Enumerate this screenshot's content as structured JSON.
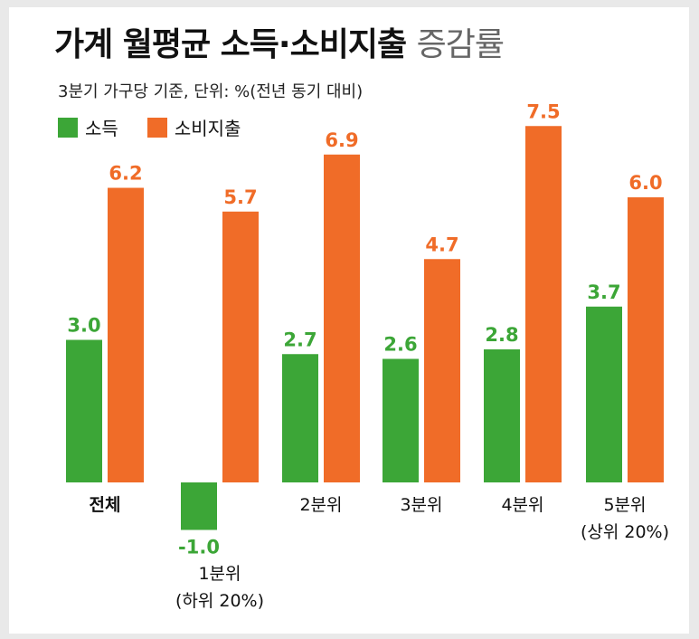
{
  "title_main": "가계 월평균 소득·소비지출",
  "title_light": "증감률",
  "subtitle": "3분기 가구당 기준, 단위: %(전년 동기 대비)",
  "colors": {
    "income": "#3ca637",
    "spending": "#f06c28"
  },
  "chart_data": {
    "type": "bar",
    "categories": [
      [
        "전체"
      ],
      [
        "1분위",
        "(하위 20%)"
      ],
      [
        "2분위"
      ],
      [
        "3분위"
      ],
      [
        "4분위"
      ],
      [
        "5분위",
        "(상위 20%)"
      ]
    ],
    "series": [
      {
        "name": "소득",
        "values": [
          3.0,
          -1.0,
          2.7,
          2.6,
          2.8,
          3.7
        ],
        "labels": [
          "3.0",
          "-1.0",
          "2.7",
          "2.6",
          "2.8",
          "3.7"
        ]
      },
      {
        "name": "소비지출",
        "values": [
          6.2,
          5.7,
          6.9,
          4.7,
          7.5,
          6.0
        ],
        "labels": [
          "6.2",
          "5.7",
          "6.9",
          "4.7",
          "7.5",
          "6.0"
        ]
      }
    ],
    "title": "가계 월평균 소득·소비지출 증감률",
    "subtitle": "3분기 가구당 기준, 단위: %(전년 동기 대비)",
    "legend": "top-left",
    "grid": false
  }
}
